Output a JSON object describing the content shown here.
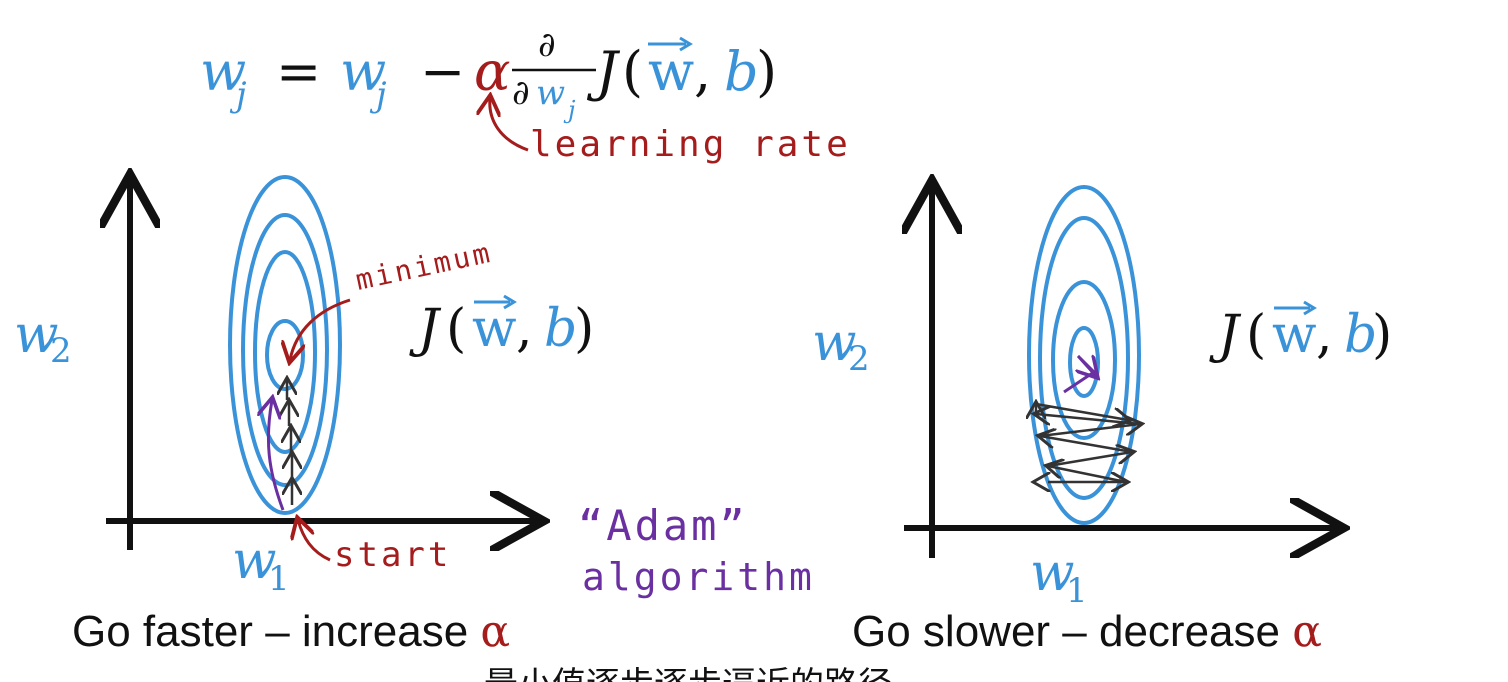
{
  "formula": {
    "lhs": "w",
    "lhs_subscript": "j",
    "equals": "=",
    "rhs_w": "w",
    "rhs_subscript": "j",
    "minus": "−",
    "alpha": "α",
    "partial_top": "∂",
    "partial_bottom": "∂",
    "partial_w": "w",
    "partial_subscript": "j",
    "J": "J",
    "open_paren": "(",
    "vec_w": "w",
    "comma": ",",
    "b": "b",
    "close_paren": ")"
  },
  "annotation": {
    "learning_rate": "learning rate"
  },
  "left_panel": {
    "ylabel": "w",
    "ylabel_sub": "2",
    "xlabel": "w",
    "xlabel_sub": "1",
    "minimum_label": "minimum",
    "start_label": "start",
    "function_label": {
      "J": "J",
      "open_paren": "(",
      "w": "w",
      "comma": ",",
      "b": "b",
      "close_paren": ")"
    },
    "caption_text": "Go faster – increase ",
    "caption_symbol": "α"
  },
  "adam_label": {
    "line1": "“Adam”",
    "line2": "algorithm"
  },
  "right_panel": {
    "ylabel": "w",
    "ylabel_sub": "2",
    "xlabel": "w",
    "xlabel_sub": "1",
    "function_label": {
      "J": "J",
      "open_paren": "(",
      "w": "w",
      "comma": ",",
      "b": "b",
      "close_paren": ")"
    },
    "caption_text": "Go slower – decrease ",
    "caption_symbol": "α"
  },
  "subtitle": "最小值逐步逐步逼近的路径",
  "colors": {
    "blue": "#3a93d8",
    "red": "#a51c1c",
    "purple": "#6a2fa0",
    "black": "#111111"
  }
}
